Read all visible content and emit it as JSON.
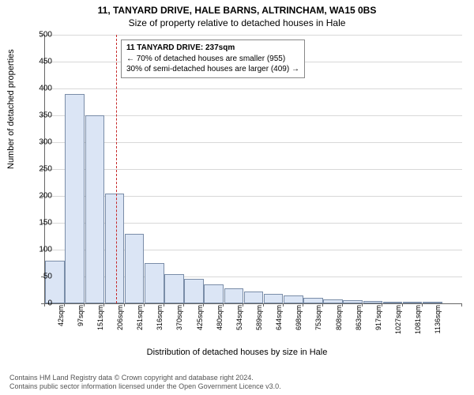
{
  "title_line1": "11, TANYARD DRIVE, HALE BARNS, ALTRINCHAM, WA15 0BS",
  "title_line2": "Size of property relative to detached houses in Hale",
  "y_axis_label": "Number of detached properties",
  "x_axis_label": "Distribution of detached houses by size in Hale",
  "footer_line1": "Contains HM Land Registry data © Crown copyright and database right 2024.",
  "footer_line2": "Contains public sector information licensed under the Open Government Licence v3.0.",
  "chart": {
    "type": "histogram",
    "ylim": [
      0,
      500
    ],
    "ytick_step": 50,
    "bar_fill": "#dbe5f5",
    "bar_border": "#7a8da8",
    "grid_color": "#d8d8d8",
    "background": "#ffffff",
    "ref_line_color": "#c62828",
    "ref_value_sqm": 237,
    "x_min": 42,
    "x_step": 54.5,
    "bars": [
      {
        "label": "42sqm",
        "value": 80
      },
      {
        "label": "97sqm",
        "value": 390
      },
      {
        "label": "151sqm",
        "value": 350
      },
      {
        "label": "206sqm",
        "value": 205
      },
      {
        "label": "261sqm",
        "value": 130
      },
      {
        "label": "316sqm",
        "value": 75
      },
      {
        "label": "370sqm",
        "value": 55
      },
      {
        "label": "425sqm",
        "value": 45
      },
      {
        "label": "480sqm",
        "value": 35
      },
      {
        "label": "534sqm",
        "value": 28
      },
      {
        "label": "589sqm",
        "value": 22
      },
      {
        "label": "644sqm",
        "value": 17
      },
      {
        "label": "698sqm",
        "value": 14
      },
      {
        "label": "753sqm",
        "value": 10
      },
      {
        "label": "808sqm",
        "value": 8
      },
      {
        "label": "863sqm",
        "value": 6
      },
      {
        "label": "917sqm",
        "value": 4
      },
      {
        "label": "1027sqm",
        "value": 2
      },
      {
        "label": "1081sqm",
        "value": 2
      },
      {
        "label": "1136sqm",
        "value": 2
      }
    ],
    "bar_count_total": 21
  },
  "annotation": {
    "line1": "11 TANYARD DRIVE: 237sqm",
    "line2": "← 70% of detached houses are smaller (955)",
    "line3": "30% of semi-detached houses are larger (409) →"
  }
}
